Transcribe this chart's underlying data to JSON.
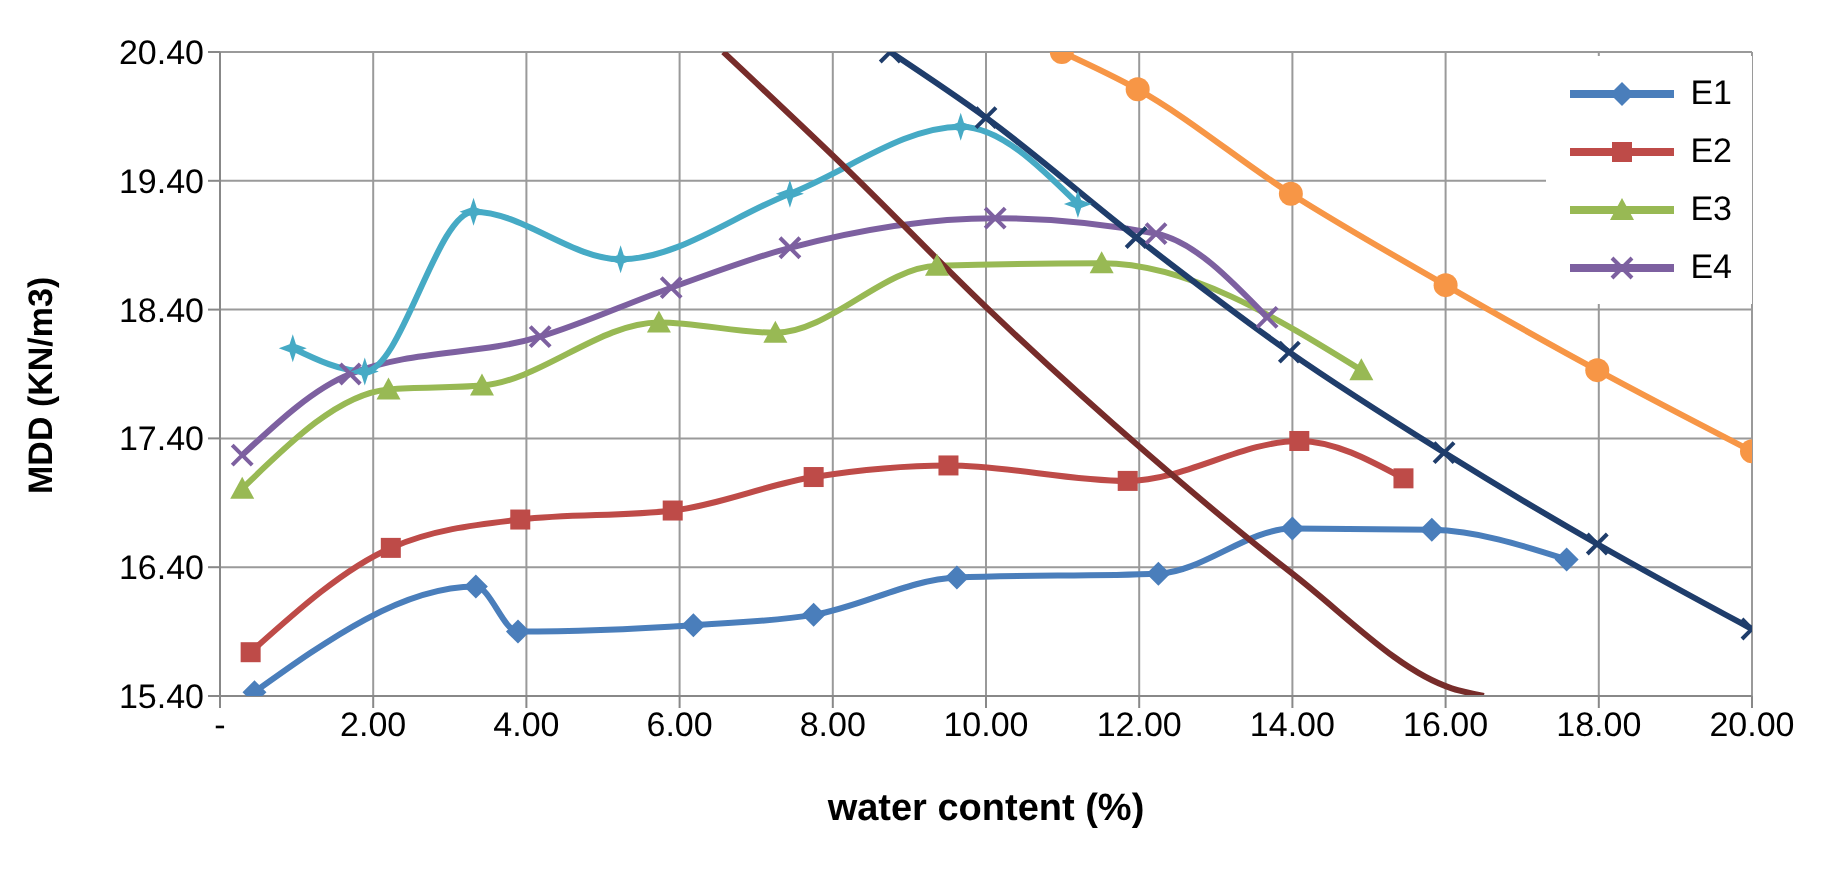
{
  "chart_data": {
    "type": "line",
    "xlabel": "water content  (%)",
    "ylabel": "MDD  (KN/m3)",
    "xlim": [
      0,
      20
    ],
    "ylim": [
      15.4,
      20.4
    ],
    "xticks": [
      {
        "value": 0,
        "label": "-"
      },
      {
        "value": 2,
        "label": "2.00"
      },
      {
        "value": 4,
        "label": "4.00"
      },
      {
        "value": 6,
        "label": "6.00"
      },
      {
        "value": 8,
        "label": "8.00"
      },
      {
        "value": 10,
        "label": "10.00"
      },
      {
        "value": 12,
        "label": "12.00"
      },
      {
        "value": 14,
        "label": "14.00"
      },
      {
        "value": 16,
        "label": "16.00"
      },
      {
        "value": 18,
        "label": "18.00"
      },
      {
        "value": 20,
        "label": "20.00"
      }
    ],
    "yticks": [
      {
        "value": 15.4,
        "label": "15.40"
      },
      {
        "value": 16.4,
        "label": "16.40"
      },
      {
        "value": 17.4,
        "label": "17.40"
      },
      {
        "value": 18.4,
        "label": "18.40"
      },
      {
        "value": 19.4,
        "label": "19.40"
      },
      {
        "value": 20.4,
        "label": "20.40"
      }
    ],
    "grid": true,
    "legend": "top right",
    "line_style": "solid",
    "series": [
      {
        "name": "E1",
        "color": "#4a7ebb",
        "marker": "diamond",
        "x": [
          0.45,
          3.34,
          3.89,
          6.18,
          7.75,
          9.62,
          12.25,
          14.0,
          15.82,
          17.58
        ],
        "values": [
          15.43,
          16.25,
          15.9,
          15.95,
          16.03,
          16.32,
          16.35,
          16.7,
          16.69,
          16.46
        ]
      },
      {
        "name": "E2",
        "color": "#be4b48",
        "marker": "square",
        "x": [
          0.4,
          2.23,
          3.92,
          5.91,
          7.75,
          9.51,
          11.85,
          14.09,
          15.45
        ],
        "values": [
          15.74,
          16.55,
          16.77,
          16.84,
          17.1,
          17.19,
          17.07,
          17.38,
          17.09
        ]
      },
      {
        "name": "E3",
        "color": "#98b954",
        "marker": "triangle",
        "x": [
          0.29,
          2.2,
          3.42,
          5.73,
          7.25,
          9.36,
          11.51,
          14.9
        ],
        "values": [
          17.01,
          17.78,
          17.81,
          18.3,
          18.22,
          18.74,
          18.76,
          17.93
        ]
      },
      {
        "name": "E4",
        "color": "#7d60a0",
        "marker": "cross",
        "x": [
          0.29,
          1.7,
          4.18,
          5.89,
          7.44,
          10.12,
          12.22,
          13.67
        ],
        "values": [
          17.27,
          17.9,
          18.19,
          18.57,
          18.88,
          19.11,
          18.99,
          18.34
        ]
      },
      {
        "color": "#46aac5",
        "marker": "star",
        "x": [
          0.95,
          1.89,
          3.31,
          5.23,
          7.44,
          9.67,
          11.2
        ],
        "values": [
          18.1,
          17.92,
          19.16,
          18.79,
          19.3,
          19.82,
          19.22
        ]
      },
      {
        "color": "#772c2a",
        "marker": "none",
        "x": [
          6.57,
          8.15,
          10.07,
          12.09,
          14.0,
          16.08,
          16.5
        ],
        "values": [
          20.4,
          19.51,
          18.38,
          17.29,
          16.35,
          15.46,
          15.4
        ]
      },
      {
        "color": "#1f3d6b",
        "marker": "cross",
        "x": [
          8.75,
          10.0,
          11.96,
          13.96,
          15.98,
          17.98,
          20.0
        ],
        "values": [
          20.4,
          19.89,
          18.96,
          18.07,
          17.29,
          16.58,
          15.92
        ]
      },
      {
        "color": "#f79646",
        "marker": "circle",
        "x": [
          10.99,
          11.98,
          13.98,
          16.0,
          17.98,
          20.0
        ],
        "values": [
          20.4,
          20.11,
          19.3,
          18.59,
          17.93,
          17.3
        ]
      }
    ]
  }
}
